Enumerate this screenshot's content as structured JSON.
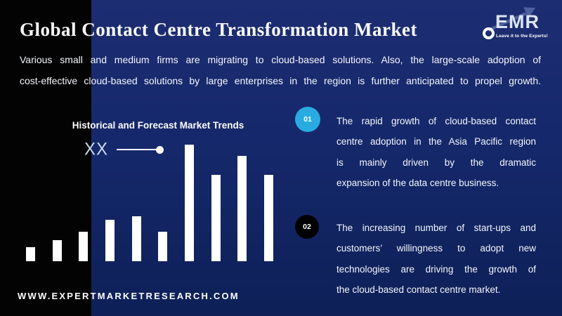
{
  "header": {
    "title": "Global Contact Centre Transformation Market"
  },
  "logo": {
    "text": "EMR",
    "tagline": "Leave it to the Experts!"
  },
  "intro": {
    "lines": [
      "Various small and medium firms are migrating to cloud-based solutions. Also, the large-scale adoption of",
      "cost-effective cloud-based solutions by large enterprises in the region is further anticipated to propel growth."
    ]
  },
  "chart": {
    "title": "Historical and Forecast Market Trends",
    "legend_label": "XX"
  },
  "chart_data": {
    "type": "bar",
    "title": "Historical and Forecast Market Trends",
    "x": [
      1,
      2,
      3,
      4,
      5,
      6,
      7,
      8,
      9,
      10
    ],
    "values": [
      20,
      30,
      42,
      59,
      64,
      42,
      166,
      123,
      150,
      123
    ],
    "values_pct_of_max": [
      12,
      18,
      25,
      36,
      39,
      25,
      100,
      74,
      90,
      74
    ],
    "values_unit": "relative-height-px",
    "xlabel": "",
    "ylabel": "",
    "axes_visible": false,
    "grid": false,
    "value_labels_visible": false,
    "bar_color": "#ffffff",
    "legend": {
      "label": "XX",
      "marker": "line-with-dot",
      "position": "left-of-plot"
    }
  },
  "points": [
    {
      "number": "01",
      "circle_color": "#29abe2",
      "lines": [
        "The rapid growth of cloud-based contact",
        "centre adoption in the Asia Pacific region",
        "is mainly driven by the dramatic",
        "expansion of the data centre business."
      ]
    },
    {
      "number": "02",
      "circle_color": "#000000",
      "lines": [
        "The increasing number of start-ups and",
        "customers’ willingness to adopt new",
        "technologies are driving the growth of",
        "the cloud-based contact centre market."
      ]
    }
  ],
  "footer": {
    "website": "WWW.EXPERTMARKETRESEARCH.COM"
  },
  "colors": {
    "background_navy_top": "#1d2d72",
    "background_navy_bottom": "#0e2057",
    "left_band_black": "#030303",
    "bar_white": "#ffffff",
    "accent_light_blue": "#29abe2",
    "point2_black": "#000000",
    "legend_label_blue_white": "#c9daf0",
    "logo_arrow_blue": "#4f639f"
  }
}
